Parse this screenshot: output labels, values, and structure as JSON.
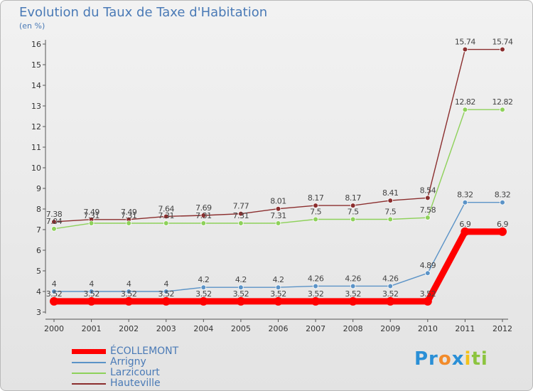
{
  "header": {
    "title": "Evolution du Taux de Taxe d'Habitation",
    "subtitle": "(en %)"
  },
  "logo": {
    "text": "Proxiti",
    "letters": [
      "Pr",
      "o",
      "x",
      "i",
      "ti"
    ]
  },
  "chart_data": {
    "type": "line",
    "title": "Evolution du Taux de Taxe d'Habitation",
    "ylabel": "(en %)",
    "xlabel": "",
    "x": [
      "2000",
      "2001",
      "2002",
      "2003",
      "2004",
      "2005",
      "2006",
      "2007",
      "2008",
      "2009",
      "2010",
      "2011",
      "2012"
    ],
    "ylim": [
      3,
      16
    ],
    "yticks": [
      "3",
      "4",
      "5",
      "6",
      "7",
      "8",
      "9",
      "10",
      "11",
      "12",
      "13",
      "14",
      "15",
      "16"
    ],
    "grid": false,
    "legend_position": "bottom-left",
    "series": [
      {
        "name": "ÉCOLLEMONT",
        "color": "#ff0000",
        "values": [
          3.52,
          3.52,
          3.52,
          3.52,
          3.52,
          3.52,
          3.52,
          3.52,
          3.52,
          3.52,
          3.52,
          6.9,
          6.9
        ],
        "labels": [
          "3.52",
          "3.52",
          "3.52",
          "3.52",
          "3.52",
          "3.52",
          "3.52",
          "3.52",
          "3.52",
          "3.52",
          "3.52",
          "6.9",
          "6.9"
        ]
      },
      {
        "name": "Arrigny",
        "color": "#5b93c7",
        "values": [
          4,
          4,
          4,
          4,
          4.2,
          4.2,
          4.2,
          4.26,
          4.26,
          4.26,
          4.89,
          8.32,
          8.32
        ],
        "labels": [
          "4",
          "4",
          "4",
          "4",
          "4.2",
          "4.2",
          "4.2",
          "4.26",
          "4.26",
          "4.26",
          "4.89",
          "8.32",
          "8.32"
        ]
      },
      {
        "name": "Larzicourt",
        "color": "#8ed15a",
        "values": [
          7.04,
          7.31,
          7.31,
          7.31,
          7.31,
          7.31,
          7.31,
          7.5,
          7.5,
          7.5,
          7.58,
          12.82,
          12.82
        ],
        "labels": [
          "7.04",
          "7.31",
          "7.31",
          "7.31",
          "7.31",
          "7.31",
          "7.31",
          "7.5",
          "7.5",
          "7.5",
          "7.58",
          "12.82",
          "12.82"
        ]
      },
      {
        "name": "Hauteville",
        "color": "#8b2e2e",
        "values": [
          7.38,
          7.49,
          7.49,
          7.64,
          7.69,
          7.77,
          8.01,
          8.17,
          8.17,
          8.41,
          8.54,
          15.74,
          15.74
        ],
        "labels": [
          "7.38",
          "7.49",
          "7.49",
          "7.64",
          "7.69",
          "7.77",
          "8.01",
          "8.17",
          "8.17",
          "8.41",
          "8.54",
          "15.74",
          "15.74"
        ]
      }
    ]
  }
}
